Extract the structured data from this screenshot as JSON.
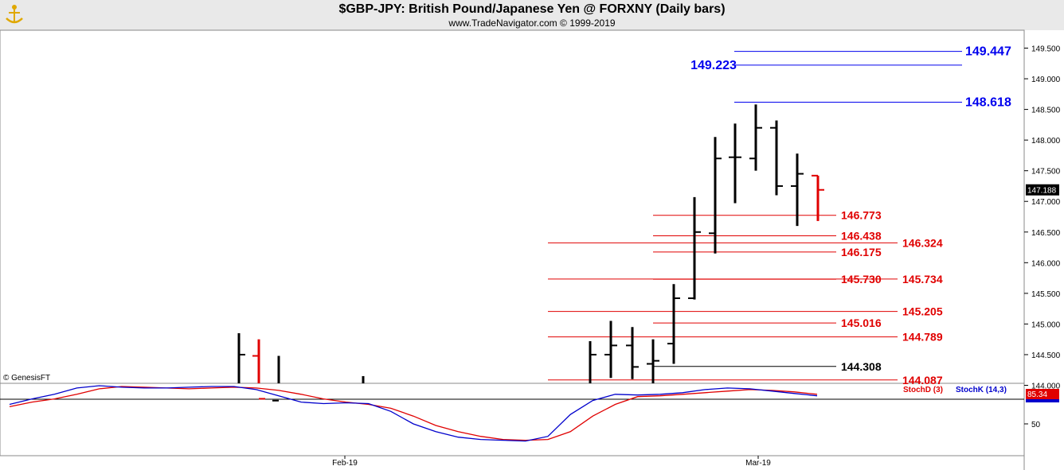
{
  "header": {
    "title": "$GBP-JPY:  British Pound/Japanese Yen @ FORXNY  (Daily bars)",
    "subtitle": "www.TradeNavigator.com © 1999-2019",
    "logo_icon": "tradenavigator-logo-icon"
  },
  "watermark": "© GenesisFT",
  "chart_data": [
    {
      "type": "ohlc",
      "panel": "price",
      "y_ticks": [
        "149.500",
        "149.000",
        "148.500",
        "148.000",
        "147.500",
        "147.000",
        "146.500",
        "146.000",
        "145.500",
        "145.000",
        "144.500",
        "144.000"
      ],
      "y_tick_values": [
        149.5,
        149.0,
        148.5,
        148.0,
        147.5,
        147.0,
        146.5,
        146.0,
        145.5,
        145.0,
        144.5,
        144.0
      ],
      "ylim": [
        143.6,
        149.9
      ],
      "last_price": "147.188",
      "x_labels": [
        "Feb-19",
        "Mar-19"
      ],
      "bars": [
        {
          "h": 144.85,
          "l": 143.6,
          "o": null,
          "c": 144.5,
          "color": "#000000"
        },
        {
          "h": 144.75,
          "l": 143.6,
          "o": 144.48,
          "c": 143.78,
          "color": "#e00000"
        },
        {
          "h": 144.48,
          "l": 143.6,
          "o": 143.75,
          "c": null,
          "color": "#000000"
        },
        {
          "h": 144.15,
          "l": 143.6,
          "o": null,
          "c": null,
          "color": "#000000"
        },
        {
          "h": 144.72,
          "l": 143.6,
          "o": null,
          "c": 144.5,
          "color": "#000000"
        },
        {
          "h": 145.05,
          "l": 144.12,
          "o": 144.5,
          "c": 144.65,
          "color": "#000000"
        },
        {
          "h": 144.95,
          "l": 144.1,
          "o": 144.65,
          "c": 144.3,
          "color": "#000000"
        },
        {
          "h": 144.75,
          "l": 143.75,
          "o": 144.35,
          "c": 144.4,
          "color": "#000000"
        },
        {
          "h": 145.65,
          "l": 144.35,
          "o": 144.68,
          "c": 145.42,
          "color": "#000000"
        },
        {
          "h": 147.07,
          "l": 145.4,
          "o": 145.42,
          "c": 146.5,
          "color": "#000000"
        },
        {
          "h": 148.05,
          "l": 146.15,
          "o": 146.48,
          "c": 147.7,
          "color": "#000000"
        },
        {
          "h": 148.27,
          "l": 146.97,
          "o": 147.72,
          "c": 147.72,
          "color": "#000000"
        },
        {
          "h": 148.58,
          "l": 147.5,
          "o": 147.7,
          "c": 148.2,
          "color": "#000000"
        },
        {
          "h": 148.32,
          "l": 147.1,
          "o": 148.2,
          "c": 147.25,
          "color": "#000000"
        },
        {
          "h": 147.78,
          "l": 146.6,
          "o": 147.25,
          "c": 147.45,
          "color": "#000000"
        },
        {
          "h": 147.42,
          "l": 146.68,
          "o": 147.42,
          "c": 147.188,
          "color": "#e00000"
        }
      ],
      "levels": [
        {
          "value": 149.447,
          "label": "149.447",
          "color": "#0000ee"
        },
        {
          "value": 149.223,
          "label": "149.223",
          "color": "#0000ee"
        },
        {
          "value": 148.618,
          "label": "148.618",
          "color": "#0000ee"
        },
        {
          "value": 146.773,
          "label": "146.773",
          "color": "#e00000"
        },
        {
          "value": 146.438,
          "label": "146.438",
          "color": "#e00000"
        },
        {
          "value": 146.324,
          "label": "146.324",
          "color": "#e00000"
        },
        {
          "value": 146.175,
          "label": "146.175",
          "color": "#e00000"
        },
        {
          "value": 145.73,
          "label": "145.730",
          "color": "#e00000"
        },
        {
          "value": 145.734,
          "label": "145.734",
          "color": "#e00000"
        },
        {
          "value": 145.205,
          "label": "145.205",
          "color": "#e00000"
        },
        {
          "value": 145.016,
          "label": "145.016",
          "color": "#e00000"
        },
        {
          "value": 144.789,
          "label": "144.789",
          "color": "#e00000"
        },
        {
          "value": 144.308,
          "label": "144.308",
          "color": "#000000"
        },
        {
          "value": 144.087,
          "label": "144.087",
          "color": "#e00000"
        }
      ]
    },
    {
      "type": "line",
      "panel": "stochastic",
      "legend": [
        "StochD (3)",
        "StochK (14,3)"
      ],
      "y_ticks": [
        "50"
      ],
      "ylim": [
        0,
        100
      ],
      "last_value": "85.34",
      "series": [
        {
          "name": "StochD (3)",
          "color": "#e00000",
          "values": [
            72,
            78,
            82,
            88,
            95,
            98,
            97,
            96,
            95,
            96,
            97,
            96,
            93,
            88,
            82,
            78,
            75,
            70,
            60,
            48,
            40,
            34,
            30,
            29,
            30,
            40,
            60,
            75,
            85,
            86,
            88,
            90,
            92,
            94,
            93,
            91,
            88
          ]
        },
        {
          "name": "StochK (14,3)",
          "color": "#0000cc",
          "values": [
            75,
            82,
            88,
            96,
            99,
            97,
            96,
            96,
            97,
            98,
            98,
            94,
            86,
            78,
            76,
            77,
            76,
            66,
            50,
            40,
            33,
            30,
            29,
            28,
            34,
            62,
            80,
            88,
            87,
            88,
            90,
            94,
            96,
            95,
            92,
            89,
            86
          ]
        }
      ]
    }
  ]
}
